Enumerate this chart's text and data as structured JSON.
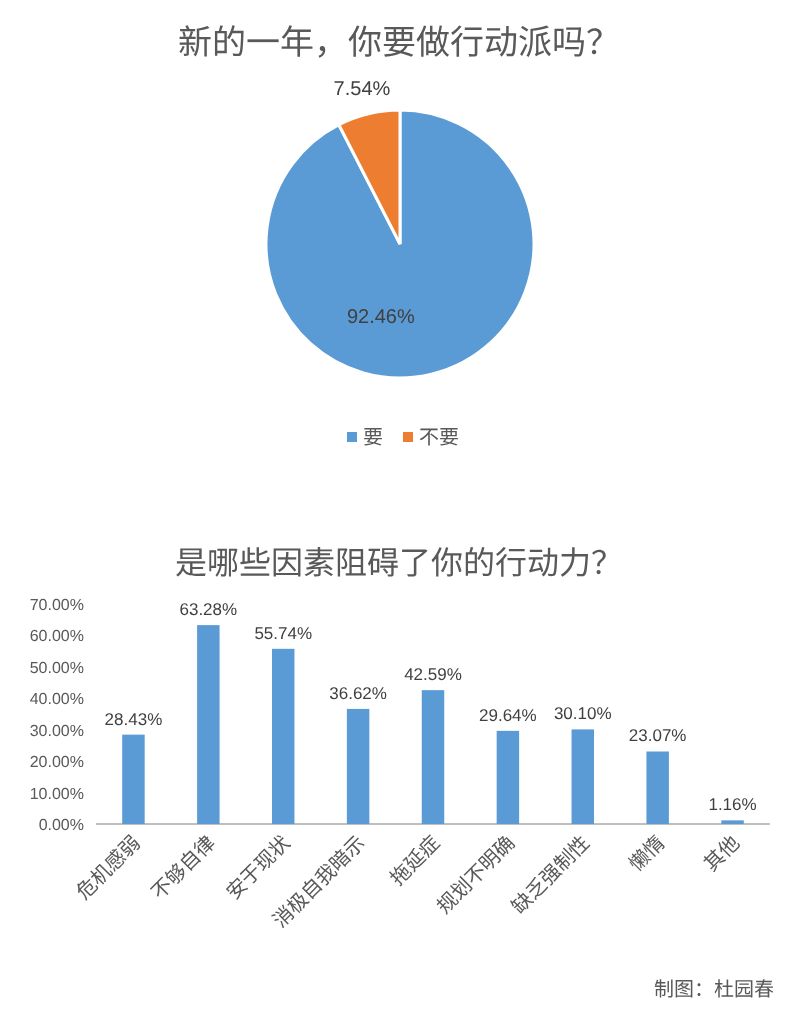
{
  "chart_data": [
    {
      "type": "pie",
      "title": "新的一年，你要做行动派吗？",
      "categories": [
        "要",
        "不要"
      ],
      "values": [
        92.46,
        7.54
      ],
      "colors": [
        "#5b9bd5",
        "#ed7d31"
      ],
      "value_labels": [
        "92.46%",
        "7.54%"
      ],
      "legend": "bottom"
    },
    {
      "type": "bar",
      "title": "是哪些因素阻碍了你的行动力？",
      "categories": [
        "危机感弱",
        "不够自律",
        "安于现状",
        "消极自我暗示",
        "拖延症",
        "规划不明确",
        "缺乏强制性",
        "懒惰",
        "其他"
      ],
      "values": [
        28.43,
        63.28,
        55.74,
        36.62,
        42.59,
        29.64,
        30.1,
        23.07,
        1.16
      ],
      "color": "#5b9bd5",
      "value_labels": [
        "28.43%",
        "63.28%",
        "55.74%",
        "36.62%",
        "42.59%",
        "29.64%",
        "30.10%",
        "23.07%",
        "1.16%"
      ],
      "ylim": [
        0,
        70
      ],
      "yticks": [
        {
          "value": 0,
          "label": "0.00%"
        },
        {
          "value": 10,
          "label": "10.00%"
        },
        {
          "value": 20,
          "label": "20.00%"
        },
        {
          "value": 30,
          "label": "30.00%"
        },
        {
          "value": 40,
          "label": "40.00%"
        },
        {
          "value": 50,
          "label": "50.00%"
        },
        {
          "value": 60,
          "label": "60.00%"
        },
        {
          "value": 70,
          "label": "70.00%"
        }
      ],
      "annotations": [
        "制图：杜园春"
      ]
    }
  ]
}
